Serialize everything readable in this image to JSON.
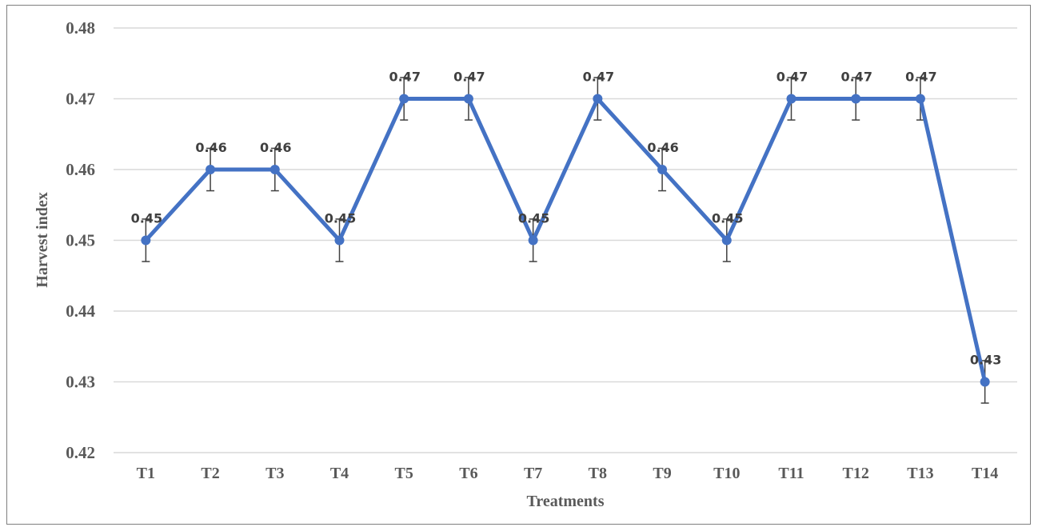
{
  "chart_data": {
    "type": "line",
    "categories": [
      "T1",
      "T2",
      "T3",
      "T4",
      "T5",
      "T6",
      "T7",
      "T8",
      "T9",
      "T10",
      "T11",
      "T12",
      "T13",
      "T14"
    ],
    "series": [
      {
        "values": [
          0.45,
          0.46,
          0.46,
          0.45,
          0.47,
          0.47,
          0.45,
          0.47,
          0.46,
          0.45,
          0.47,
          0.47,
          0.47,
          0.43
        ],
        "error": [
          0.003,
          0.003,
          0.003,
          0.003,
          0.003,
          0.003,
          0.003,
          0.003,
          0.003,
          0.003,
          0.003,
          0.003,
          0.003,
          0.003
        ],
        "data_labels": [
          "0.45",
          "0.46",
          "0.46",
          "0.45",
          "0.47",
          "0.47",
          "0.45",
          "0.47",
          "0.46",
          "0.45",
          "0.47",
          "0.47",
          "0.47",
          "0.43"
        ]
      }
    ],
    "xlabel": "Treatments",
    "ylabel": "Harvest index",
    "ylim": [
      0.42,
      0.48
    ],
    "yticks": [
      "0.42",
      "0.43",
      "0.44",
      "0.45",
      "0.46",
      "0.47",
      "0.48"
    ],
    "grid": true,
    "legend": "none",
    "colors": {
      "line": "#4472C4",
      "grid": "#d9d9d9",
      "error_bar": "#404040",
      "text": "#595959"
    }
  }
}
